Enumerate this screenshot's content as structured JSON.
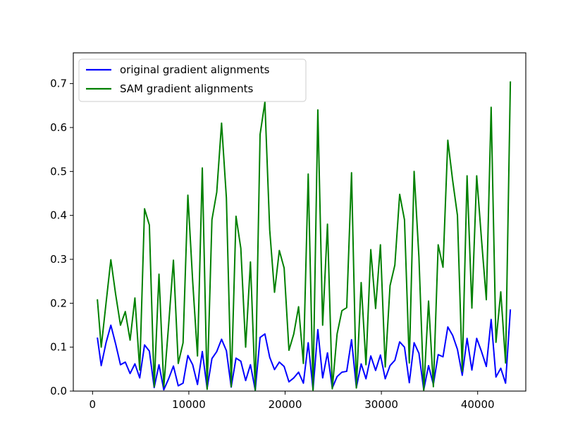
{
  "chart_data": {
    "type": "line",
    "title": "",
    "xlabel": "",
    "ylabel": "",
    "xlim": [
      -2000,
      45000
    ],
    "ylim": [
      0,
      0.77
    ],
    "x_ticks": [
      0,
      10000,
      20000,
      30000,
      40000
    ],
    "y_ticks": [
      0.0,
      0.1,
      0.2,
      0.3,
      0.4,
      0.5,
      0.6,
      0.7
    ],
    "x_tick_labels": [
      "0",
      "10000",
      "20000",
      "30000",
      "40000"
    ],
    "y_tick_labels": [
      "0.0",
      "0.1",
      "0.2",
      "0.3",
      "0.4",
      "0.5",
      "0.6",
      "0.7"
    ],
    "grid": false,
    "legend_position": "upper-left",
    "x": [
      500,
      900,
      1400,
      1900,
      2400,
      2900,
      3400,
      3900,
      4400,
      4900,
      5400,
      5900,
      6400,
      6900,
      7400,
      7900,
      8400,
      8900,
      9400,
      9900,
      10400,
      10900,
      11400,
      11900,
      12400,
      12900,
      13400,
      13900,
      14400,
      14900,
      15400,
      15900,
      16400,
      16900,
      17400,
      17900,
      18400,
      18900,
      19400,
      19900,
      20400,
      20900,
      21400,
      21900,
      22400,
      22900,
      23400,
      23900,
      24400,
      24900,
      25400,
      25900,
      26400,
      26900,
      27400,
      27900,
      28400,
      28900,
      29400,
      29900,
      30400,
      30900,
      31400,
      31900,
      32400,
      32900,
      33400,
      33900,
      34400,
      34900,
      35400,
      35900,
      36400,
      36900,
      37400,
      37900,
      38400,
      38900,
      39400,
      39900,
      40400,
      40900,
      41400,
      41900,
      42400,
      42900,
      43400
    ],
    "series": [
      {
        "name": "original gradient alignments",
        "color": "#0000ff",
        "values": [
          0.122,
          0.058,
          0.11,
          0.15,
          0.107,
          0.06,
          0.066,
          0.04,
          0.062,
          0.03,
          0.105,
          0.091,
          0.008,
          0.06,
          0.003,
          0.028,
          0.057,
          0.012,
          0.018,
          0.081,
          0.06,
          0.015,
          0.09,
          0.006,
          0.074,
          0.09,
          0.118,
          0.092,
          0.009,
          0.075,
          0.068,
          0.024,
          0.06,
          0.002,
          0.122,
          0.13,
          0.077,
          0.049,
          0.066,
          0.056,
          0.021,
          0.03,
          0.043,
          0.018,
          0.11,
          0.003,
          0.14,
          0.03,
          0.087,
          0.007,
          0.033,
          0.043,
          0.045,
          0.117,
          0.008,
          0.062,
          0.028,
          0.08,
          0.047,
          0.082,
          0.028,
          0.058,
          0.07,
          0.112,
          0.1,
          0.019,
          0.11,
          0.086,
          0.003,
          0.058,
          0.015,
          0.083,
          0.078,
          0.146,
          0.127,
          0.095,
          0.036,
          0.12,
          0.048,
          0.12,
          0.09,
          0.056,
          0.163,
          0.032,
          0.052,
          0.018,
          0.186
        ],
        "values_tail_note": ""
      },
      {
        "name": "SAM gradient alignments",
        "color": "#008000",
        "values": [
          0.209,
          0.1,
          0.2,
          0.299,
          0.22,
          0.15,
          0.181,
          0.116,
          0.212,
          0.048,
          0.415,
          0.378,
          0.01,
          0.266,
          0.01,
          0.15,
          0.298,
          0.063,
          0.11,
          0.446,
          0.25,
          0.08,
          0.508,
          0.004,
          0.39,
          0.453,
          0.61,
          0.44,
          0.01,
          0.398,
          0.325,
          0.1,
          0.294,
          0.002,
          0.584,
          0.658,
          0.367,
          0.225,
          0.32,
          0.28,
          0.093,
          0.13,
          0.192,
          0.063,
          0.494,
          0.002,
          0.64,
          0.15,
          0.38,
          0.005,
          0.13,
          0.183,
          0.19,
          0.497,
          0.007,
          0.247,
          0.06,
          0.322,
          0.188,
          0.333,
          0.055,
          0.24,
          0.287,
          0.448,
          0.39,
          0.064,
          0.5,
          0.305,
          0.002,
          0.205,
          0.01,
          0.333,
          0.282,
          0.571,
          0.48,
          0.4,
          0.045,
          0.49,
          0.189,
          0.49,
          0.345,
          0.208,
          0.646,
          0.111,
          0.226,
          0.064,
          0.705
        ]
      }
    ]
  }
}
